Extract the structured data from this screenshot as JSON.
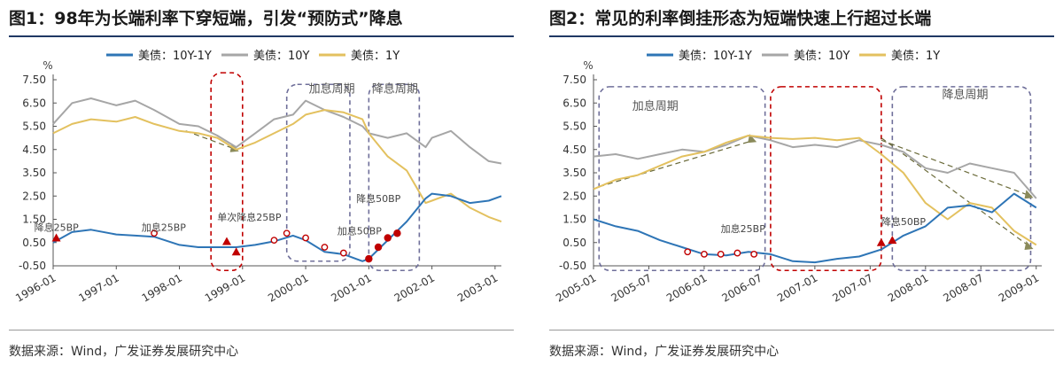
{
  "charts": [
    {
      "title": "图1：98年为长端利率下穿短端，引发“预防式”降息",
      "source": "数据来源：Wind，广发证券发展研究中心",
      "colors": {
        "spread": "#2e75b6",
        "y10": "#a6a6a6",
        "y1": "#e3c15f",
        "red": "#c00000",
        "box": "#6f6f9a"
      },
      "legend": [
        "美债：10Y-1Y",
        "美债：10Y",
        "美债：1Y"
      ],
      "annotations": [
        "降息25BP",
        "加息25BP",
        "单次降息25BP",
        "加息周期",
        "加息50BP",
        "降息周期",
        "降息50BP"
      ],
      "chart_data": {
        "type": "line",
        "yunit": "%",
        "ylim": [
          -0.5,
          7.5
        ],
        "yticks": [
          "7.50",
          "6.50",
          "5.50",
          "4.50",
          "3.50",
          "2.50",
          "1.50",
          "0.50",
          "-0.50"
        ],
        "xticks": [
          "1996-01",
          "1997-01",
          "1998-01",
          "1999-01",
          "2000-01",
          "2001-01",
          "2002-01",
          "2003-01"
        ],
        "series": [
          {
            "name": "美债：10Y-1Y",
            "x": [
              1996.0,
              1996.3,
              1996.6,
              1997.0,
              1997.3,
              1997.6,
              1998.0,
              1998.3,
              1998.6,
              1998.9,
              1999.2,
              1999.5,
              1999.8,
              2000.0,
              2000.3,
              2000.6,
              2000.9,
              2001.0,
              2001.3,
              2001.6,
              2001.9,
              2002.0,
              2002.3,
              2002.6,
              2002.9,
              2003.1
            ],
            "values": [
              0.5,
              0.95,
              1.05,
              0.85,
              0.8,
              0.75,
              0.4,
              0.3,
              0.3,
              0.3,
              0.4,
              0.55,
              0.8,
              0.6,
              0.1,
              0.0,
              -0.3,
              -0.2,
              0.6,
              1.4,
              2.4,
              2.6,
              2.5,
              2.2,
              2.3,
              2.5
            ]
          },
          {
            "name": "美债：10Y",
            "x": [
              1996.0,
              1996.3,
              1996.6,
              1997.0,
              1997.3,
              1997.6,
              1998.0,
              1998.3,
              1998.6,
              1998.9,
              1999.2,
              1999.5,
              1999.8,
              2000.0,
              2000.3,
              2000.6,
              2000.9,
              2001.0,
              2001.3,
              2001.6,
              2001.9,
              2002.0,
              2002.3,
              2002.6,
              2002.9,
              2003.1
            ],
            "values": [
              5.6,
              6.5,
              6.7,
              6.4,
              6.6,
              6.2,
              5.6,
              5.5,
              5.1,
              4.6,
              5.2,
              5.8,
              6.0,
              6.6,
              6.2,
              5.9,
              5.5,
              5.2,
              5.0,
              5.2,
              4.6,
              5.0,
              5.3,
              4.6,
              4.0,
              3.9
            ]
          },
          {
            "name": "美债：1Y",
            "x": [
              1996.0,
              1996.3,
              1996.6,
              1997.0,
              1997.3,
              1997.6,
              1998.0,
              1998.3,
              1998.6,
              1998.9,
              1999.2,
              1999.5,
              1999.8,
              2000.0,
              2000.3,
              2000.6,
              2000.9,
              2001.0,
              2001.3,
              2001.6,
              2001.9,
              2002.0,
              2002.3,
              2002.6,
              2002.9,
              2003.1
            ],
            "values": [
              5.2,
              5.6,
              5.8,
              5.7,
              5.9,
              5.6,
              5.3,
              5.2,
              5.0,
              4.5,
              4.8,
              5.2,
              5.6,
              6.0,
              6.2,
              6.1,
              5.8,
              5.2,
              4.2,
              3.6,
              2.2,
              2.3,
              2.6,
              2.0,
              1.6,
              1.4
            ]
          }
        ]
      }
    },
    {
      "title": "图2：常见的利率倒挂形态为短端快速上行超过长端",
      "source": "数据来源：Wind，广发证券发展研究中心",
      "colors": {
        "spread": "#2e75b6",
        "y10": "#a6a6a6",
        "y1": "#e3c15f",
        "red": "#c00000",
        "box": "#6f6f9a"
      },
      "legend": [
        "美债：10Y-1Y",
        "美债：10Y",
        "美债：1Y"
      ],
      "annotations": [
        "加息周期",
        "降息周期",
        "加息25BP",
        "降息50BP"
      ],
      "chart_data": {
        "type": "line",
        "yunit": "%",
        "ylim": [
          -0.5,
          7.5
        ],
        "yticks": [
          "7.50",
          "6.50",
          "5.50",
          "4.50",
          "3.50",
          "2.50",
          "1.50",
          "0.50",
          "-0.50"
        ],
        "xticks": [
          "2005-01",
          "2005-07",
          "2006-01",
          "2006-07",
          "2007-01",
          "2007-07",
          "2008-01",
          "2008-07",
          "2009-01"
        ],
        "series": [
          {
            "name": "美债：10Y-1Y",
            "x": [
              2005.0,
              2005.2,
              2005.4,
              2005.6,
              2005.8,
              2006.0,
              2006.2,
              2006.4,
              2006.6,
              2006.8,
              2007.0,
              2007.2,
              2007.4,
              2007.6,
              2007.8,
              2008.0,
              2008.2,
              2008.4,
              2008.6,
              2008.8,
              2009.0
            ],
            "values": [
              1.5,
              1.2,
              1.0,
              0.6,
              0.3,
              0.0,
              -0.05,
              0.1,
              0.0,
              -0.3,
              -0.35,
              -0.2,
              -0.1,
              0.2,
              0.8,
              1.2,
              2.0,
              2.1,
              1.8,
              2.6,
              2.0
            ]
          },
          {
            "name": "美债：10Y",
            "x": [
              2005.0,
              2005.2,
              2005.4,
              2005.6,
              2005.8,
              2006.0,
              2006.2,
              2006.4,
              2006.6,
              2006.8,
              2007.0,
              2007.2,
              2007.4,
              2007.6,
              2007.8,
              2008.0,
              2008.2,
              2008.4,
              2008.6,
              2008.8,
              2009.0
            ],
            "values": [
              4.2,
              4.3,
              4.1,
              4.3,
              4.5,
              4.4,
              4.7,
              5.1,
              4.9,
              4.6,
              4.7,
              4.6,
              4.9,
              4.7,
              4.4,
              3.7,
              3.5,
              3.9,
              3.7,
              3.5,
              2.4
            ]
          },
          {
            "name": "美债：1Y",
            "x": [
              2005.0,
              2005.2,
              2005.4,
              2005.6,
              2005.8,
              2006.0,
              2006.2,
              2006.4,
              2006.6,
              2006.8,
              2007.0,
              2007.2,
              2007.4,
              2007.6,
              2007.8,
              2008.0,
              2008.2,
              2008.4,
              2008.6,
              2008.8,
              2009.0
            ],
            "values": [
              2.8,
              3.2,
              3.4,
              3.8,
              4.2,
              4.4,
              4.8,
              5.1,
              5.0,
              4.95,
              5.0,
              4.9,
              5.0,
              4.3,
              3.5,
              2.2,
              1.5,
              2.2,
              2.0,
              1.0,
              0.4
            ]
          }
        ]
      }
    }
  ]
}
